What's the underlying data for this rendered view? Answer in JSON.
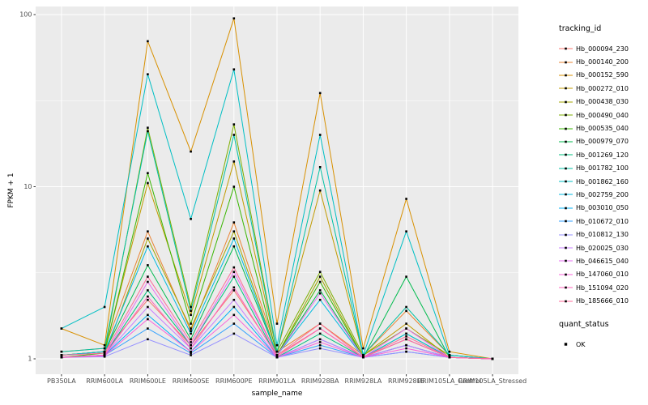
{
  "figure": {
    "background": "#FFFFFF",
    "panel_bg": "#EBEBEB",
    "grid_color": "#FFFFFF",
    "tick_color": "#333333",
    "tick_label_color": "#4D4D4D",
    "point_color": "#000000"
  },
  "axes": {
    "x_title": "sample_name",
    "y_title": "FPKM + 1"
  },
  "legend": {
    "tracking_title": "tracking_id",
    "quant_title": "quant_status",
    "quant_items": [
      {
        "label": "OK",
        "marker": "black-square"
      }
    ]
  },
  "chart_data": {
    "type": "line",
    "title": "",
    "xlabel": "sample_name",
    "ylabel": "FPKM + 1",
    "y_scale": "log10",
    "ylim": [
      0.81,
      111
    ],
    "y_ticks": [
      1,
      10,
      100
    ],
    "y_tick_labels": [
      "1",
      "10",
      "100"
    ],
    "grid": true,
    "legend_position": "right",
    "point_marker": "black-square",
    "categories": [
      "PB350LA",
      "RRIM600LA",
      "RRIM600LE",
      "RRIM600SE",
      "RRIM600PE",
      "RRIM901LA",
      "RRIM928BA",
      "RRIM928LA",
      "RRIM928LE",
      "RRIM105LA_Control",
      "RRIM105LA_Stressed"
    ],
    "series": [
      {
        "name": "Hb_000094_230",
        "color": "#F8766D",
        "values": [
          1.05,
          1.1,
          2.2,
          1.2,
          2.5,
          1.05,
          1.5,
          1.02,
          1.3,
          1.02,
          1.0
        ]
      },
      {
        "name": "Hb_000140_200",
        "color": "#EA8331",
        "values": [
          1.1,
          1.15,
          5.5,
          1.45,
          6.2,
          1.1,
          1.6,
          1.05,
          1.9,
          1.05,
          1.0
        ]
      },
      {
        "name": "Hb_000152_590",
        "color": "#D89000",
        "values": [
          1.5,
          1.2,
          70.0,
          16.0,
          95.0,
          1.6,
          35.0,
          1.15,
          8.5,
          1.1,
          1.0
        ]
      },
      {
        "name": "Hb_000272_010",
        "color": "#C09B00",
        "values": [
          1.05,
          1.1,
          10.5,
          1.8,
          14.0,
          1.1,
          9.5,
          1.05,
          1.6,
          1.02,
          1.0
        ]
      },
      {
        "name": "Hb_000438_030",
        "color": "#A3A500",
        "values": [
          1.02,
          1.05,
          5.0,
          1.5,
          5.5,
          1.05,
          3.0,
          1.02,
          1.3,
          1.02,
          1.0
        ]
      },
      {
        "name": "Hb_000490_040",
        "color": "#7CAE00",
        "values": [
          1.05,
          1.1,
          22.0,
          2.0,
          23.0,
          1.1,
          3.2,
          1.05,
          1.5,
          1.05,
          1.0
        ]
      },
      {
        "name": "Hb_000535_040",
        "color": "#39B600",
        "values": [
          1.02,
          1.08,
          12.0,
          1.6,
          10.0,
          1.05,
          2.8,
          1.02,
          1.4,
          1.02,
          1.0
        ]
      },
      {
        "name": "Hb_000979_070",
        "color": "#00BB4E",
        "values": [
          1.05,
          1.1,
          3.5,
          1.3,
          4.5,
          1.05,
          2.5,
          1.02,
          3.0,
          1.02,
          1.0
        ]
      },
      {
        "name": "Hb_001269_120",
        "color": "#00BF7D",
        "values": [
          1.02,
          1.05,
          2.5,
          1.2,
          3.0,
          1.02,
          1.4,
          1.02,
          1.2,
          1.02,
          1.0
        ]
      },
      {
        "name": "Hb_001782_100",
        "color": "#00C1A3",
        "values": [
          1.1,
          1.15,
          21.0,
          1.9,
          20.0,
          1.1,
          13.0,
          1.05,
          2.0,
          1.05,
          1.0
        ]
      },
      {
        "name": "Hb_001862_160",
        "color": "#00BFC4",
        "values": [
          1.5,
          2.0,
          45.0,
          6.5,
          48.0,
          1.2,
          20.0,
          1.05,
          5.5,
          1.05,
          1.0
        ]
      },
      {
        "name": "Hb_002759_200",
        "color": "#00BAE0",
        "values": [
          1.05,
          1.1,
          4.5,
          1.4,
          5.0,
          1.05,
          2.2,
          1.02,
          1.4,
          1.02,
          1.0
        ]
      },
      {
        "name": "Hb_003010_050",
        "color": "#00B0F6",
        "values": [
          1.02,
          1.05,
          1.8,
          1.1,
          2.0,
          1.02,
          1.3,
          1.02,
          1.2,
          1.02,
          1.0
        ]
      },
      {
        "name": "Hb_010672_010",
        "color": "#35A2FF",
        "values": [
          1.02,
          1.05,
          1.5,
          1.08,
          1.6,
          1.02,
          1.2,
          1.02,
          1.1,
          1.02,
          1.0
        ]
      },
      {
        "name": "Hb_010812_130",
        "color": "#9590FF",
        "values": [
          1.02,
          1.03,
          1.3,
          1.05,
          1.4,
          1.02,
          1.15,
          1.02,
          1.1,
          1.02,
          1.0
        ]
      },
      {
        "name": "Hb_020025_030",
        "color": "#C77CFF",
        "values": [
          1.02,
          1.05,
          2.0,
          1.15,
          2.2,
          1.02,
          1.3,
          1.02,
          1.2,
          1.02,
          1.0
        ]
      },
      {
        "name": "Hb_046615_040",
        "color": "#E76BF3",
        "values": [
          1.02,
          1.05,
          2.8,
          1.2,
          3.2,
          1.05,
          2.4,
          1.02,
          1.5,
          1.02,
          1.0
        ]
      },
      {
        "name": "Hb_147060_010",
        "color": "#FA62DB",
        "values": [
          1.02,
          1.04,
          1.7,
          1.1,
          1.8,
          1.02,
          1.25,
          1.02,
          1.15,
          1.02,
          1.0
        ]
      },
      {
        "name": "Hb_151094_020",
        "color": "#FF62BC",
        "values": [
          1.02,
          1.05,
          2.3,
          1.15,
          2.6,
          1.03,
          1.5,
          1.02,
          1.3,
          1.02,
          1.0
        ]
      },
      {
        "name": "Hb_185666_010",
        "color": "#FF6A98",
        "values": [
          1.05,
          1.08,
          3.0,
          1.25,
          3.4,
          1.05,
          1.6,
          1.02,
          1.35,
          1.02,
          1.0
        ]
      }
    ]
  }
}
